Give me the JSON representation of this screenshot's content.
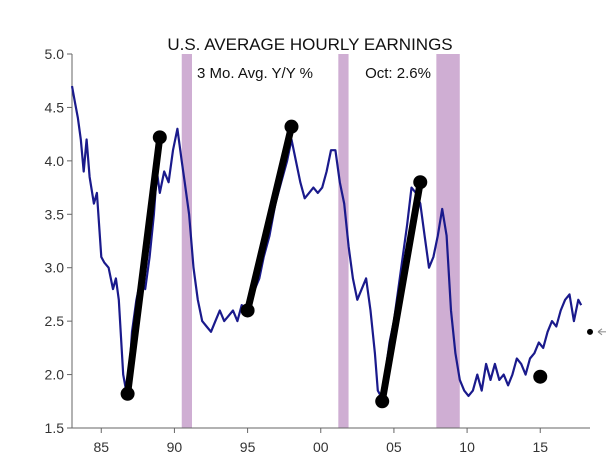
{
  "chart_data": {
    "type": "line",
    "title": "U.S. AVERAGE HOURLY EARNINGS",
    "subtitle": "3 Mo. Avg.  Y/Y %",
    "annotation": "Oct: 2.6%",
    "xlabel": "",
    "ylabel": "",
    "x_tick_labels": [
      "85",
      "90",
      "95",
      "00",
      "05",
      "10",
      "15"
    ],
    "x_ticks": [
      1985,
      1990,
      1995,
      2000,
      2005,
      2010,
      2015
    ],
    "y_tick_labels": [
      "1.5",
      "2.0",
      "2.5",
      "3.0",
      "3.5",
      "4.0",
      "4.5",
      "5.0"
    ],
    "y_ticks": [
      1.5,
      2.0,
      2.5,
      3.0,
      3.5,
      4.0,
      4.5,
      5.0
    ],
    "xlim": [
      1983,
      2018.4
    ],
    "ylim": [
      1.5,
      5.0
    ],
    "grid": false,
    "series": [
      {
        "color": "#1a1a8c",
        "x": [
          1983.0,
          1983.2,
          1983.4,
          1983.6,
          1983.8,
          1984.0,
          1984.2,
          1984.5,
          1984.7,
          1985.0,
          1985.2,
          1985.5,
          1985.8,
          1986.0,
          1986.2,
          1986.5,
          1986.7,
          1986.9,
          1987.1,
          1987.4,
          1987.7,
          1988.0,
          1988.3,
          1988.6,
          1988.8,
          1989.0,
          1989.3,
          1989.6,
          1989.9,
          1990.2,
          1990.5,
          1990.7,
          1991.0,
          1991.3,
          1991.6,
          1991.9,
          1992.2,
          1992.5,
          1992.8,
          1993.1,
          1993.4,
          1993.7,
          1994.0,
          1994.3,
          1994.6,
          1994.9,
          1995.2,
          1995.5,
          1995.8,
          1996.1,
          1996.5,
          1996.9,
          1997.3,
          1997.7,
          1998.0,
          1998.3,
          1998.6,
          1998.9,
          1999.2,
          1999.5,
          1999.8,
          2000.1,
          2000.4,
          2000.7,
          2001.0,
          2001.3,
          2001.6,
          2001.9,
          2002.2,
          2002.5,
          2002.8,
          2003.1,
          2003.4,
          2003.7,
          2003.9,
          2004.1,
          2004.4,
          2004.7,
          2005.0,
          2005.3,
          2005.6,
          2005.9,
          2006.2,
          2006.5,
          2006.8,
          2007.1,
          2007.4,
          2007.7,
          2008.0,
          2008.3,
          2008.6,
          2008.9,
          2009.2,
          2009.5,
          2009.8,
          2010.1,
          2010.4,
          2010.7,
          2011.0,
          2011.3,
          2011.6,
          2011.9,
          2012.2,
          2012.5,
          2012.8,
          2013.1,
          2013.4,
          2013.7,
          2014.0,
          2014.3,
          2014.6,
          2014.9,
          2015.2,
          2015.5,
          2015.8,
          2016.1,
          2016.4,
          2016.7,
          2017.0,
          2017.3,
          2017.6,
          2017.8
        ],
        "y": [
          4.7,
          4.55,
          4.4,
          4.2,
          3.9,
          4.2,
          3.85,
          3.6,
          3.7,
          3.1,
          3.05,
          3.0,
          2.8,
          2.9,
          2.7,
          2.0,
          1.85,
          2.0,
          2.4,
          2.7,
          2.9,
          2.8,
          3.1,
          3.5,
          3.9,
          3.7,
          3.9,
          3.8,
          4.1,
          4.3,
          4.0,
          3.8,
          3.5,
          3.0,
          2.7,
          2.5,
          2.45,
          2.4,
          2.5,
          2.6,
          2.5,
          2.55,
          2.6,
          2.5,
          2.65,
          2.6,
          2.7,
          2.8,
          2.9,
          3.1,
          3.3,
          3.6,
          3.8,
          4.0,
          4.2,
          4.0,
          3.8,
          3.65,
          3.7,
          3.75,
          3.7,
          3.75,
          3.9,
          4.1,
          4.1,
          3.8,
          3.6,
          3.2,
          2.9,
          2.7,
          2.8,
          2.9,
          2.6,
          2.2,
          1.85,
          1.8,
          2.0,
          2.3,
          2.5,
          2.8,
          3.1,
          3.4,
          3.75,
          3.7,
          3.6,
          3.3,
          3.0,
          3.1,
          3.3,
          3.55,
          3.3,
          2.6,
          2.2,
          1.95,
          1.85,
          1.8,
          1.85,
          2.0,
          1.85,
          2.1,
          1.95,
          2.1,
          1.95,
          2.0,
          1.9,
          2.0,
          2.15,
          2.1,
          2.0,
          2.15,
          2.2,
          2.3,
          2.25,
          2.4,
          2.5,
          2.45,
          2.6,
          2.7,
          2.75,
          2.5,
          2.7,
          2.65
        ]
      }
    ],
    "trend_lines": [
      {
        "x": [
          1986.8,
          1989.0
        ],
        "y": [
          1.82,
          4.22
        ]
      },
      {
        "x": [
          1995.0,
          1998.0
        ],
        "y": [
          2.6,
          4.32
        ]
      },
      {
        "x": [
          2004.2,
          2006.8
        ],
        "y": [
          1.75,
          3.8
        ]
      }
    ],
    "markers": [
      {
        "x": 1986.8,
        "y": 1.82
      },
      {
        "x": 1989.0,
        "y": 4.22
      },
      {
        "x": 1995.0,
        "y": 2.6
      },
      {
        "x": 1998.0,
        "y": 4.32
      },
      {
        "x": 2004.2,
        "y": 1.75
      },
      {
        "x": 2006.8,
        "y": 3.8
      },
      {
        "x": 2015.0,
        "y": 1.98
      }
    ],
    "current_marker": {
      "x": 2018.5,
      "y": 2.4
    },
    "recession_bands": [
      {
        "x0": 1990.5,
        "x1": 1991.2
      },
      {
        "x0": 2001.2,
        "x1": 2001.9
      },
      {
        "x0": 2007.9,
        "x1": 2009.5
      }
    ],
    "colors": {
      "line": "#1a1a8c",
      "trend": "#000000",
      "recession": "#cfaed3",
      "axis": "#666666",
      "text": "#111111"
    }
  }
}
